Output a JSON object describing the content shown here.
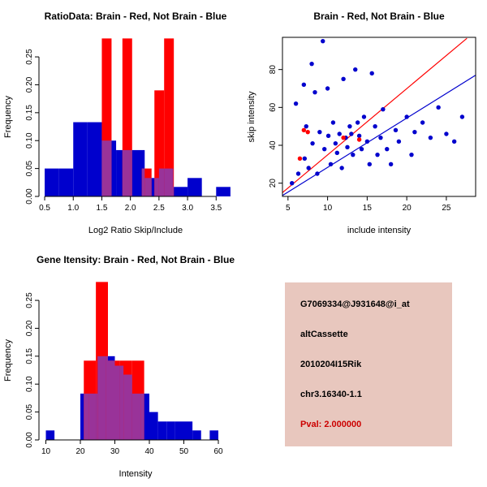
{
  "panels": {
    "info": {
      "bg": "#e8c7be",
      "lines": [
        {
          "text": "G7069334@J931648@i_at",
          "color": "#000000"
        },
        {
          "text": "altCassette",
          "color": "#000000"
        },
        {
          "text": "2010204I15Rik",
          "color": "#000000"
        },
        {
          "text": "chr3.16340-1.1",
          "color": "#000000"
        },
        {
          "text": "Pval: 2.000000",
          "color": "#cc0000"
        }
      ]
    }
  },
  "chart_data": [
    {
      "type": "bar",
      "title": "RatioData: Brain - Red, Not Brain - Blue",
      "xlabel": "Log2 Ratio Skip/Include",
      "ylabel": "Frequency",
      "xlim": [
        0.4,
        3.78
      ],
      "ylim": [
        0,
        0.285
      ],
      "xticks": [
        0.5,
        1.0,
        1.5,
        2.0,
        2.5,
        3.0,
        3.5
      ],
      "xtick_labels": [
        "0.5",
        "1.0",
        "1.5",
        "2.0",
        "2.5",
        "3.0",
        "3.5"
      ],
      "yticks": [
        0,
        0.05,
        0.1,
        0.15,
        0.2,
        0.25
      ],
      "ytick_labels": [
        "0.00",
        "0.05",
        "0.10",
        "0.15",
        "0.20",
        "0.25"
      ],
      "overlap_color": "#993399",
      "series": [
        {
          "name": "Not Brain",
          "color": "#0000cd",
          "bin_width": 0.25,
          "bins": [
            [
              0.5,
              0.05
            ],
            [
              0.75,
              0.05
            ],
            [
              1.0,
              0.133
            ],
            [
              1.25,
              0.133
            ],
            [
              1.5,
              0.1
            ],
            [
              1.75,
              0.083
            ],
            [
              2.0,
              0.083
            ],
            [
              2.25,
              0.033
            ],
            [
              2.5,
              0.05
            ],
            [
              2.75,
              0.017
            ],
            [
              3.0,
              0.033
            ],
            [
              3.5,
              0.017
            ]
          ]
        },
        {
          "name": "Brain",
          "color": "#ff0000",
          "bin_width": 0.17,
          "bins": [
            [
              1.5,
              0.283
            ],
            [
              1.86,
              0.283
            ],
            [
              2.2,
              0.05
            ],
            [
              2.42,
              0.19
            ],
            [
              2.59,
              0.283
            ]
          ]
        }
      ]
    },
    {
      "type": "scatter",
      "title": "Brain - Red, Not Brain - Blue",
      "xlabel": "include intensity",
      "ylabel": "skip intensity",
      "xlim": [
        4.3,
        28.7
      ],
      "ylim": [
        13,
        97
      ],
      "xticks": [
        5,
        10,
        15,
        20,
        25
      ],
      "xtick_labels": [
        "5",
        "10",
        "15",
        "20",
        "25"
      ],
      "yticks": [
        20,
        40,
        60,
        80
      ],
      "ytick_labels": [
        "20",
        "40",
        "60",
        "80"
      ],
      "lines": [
        {
          "color": "#ff0000",
          "x1": 4.3,
          "y1": 15,
          "x2": 27.6,
          "y2": 96.5
        },
        {
          "color": "#0000cd",
          "x1": 4.3,
          "y1": 13.5,
          "x2": 28.7,
          "y2": 77
        }
      ],
      "series": [
        {
          "name": "Not Brain",
          "color": "#0000cd",
          "points": [
            [
              5.5,
              20
            ],
            [
              6,
              62
            ],
            [
              6.3,
              25
            ],
            [
              7,
              72
            ],
            [
              7.1,
              33
            ],
            [
              7.3,
              50
            ],
            [
              7.6,
              28
            ],
            [
              8,
              83
            ],
            [
              8.1,
              41
            ],
            [
              8.4,
              68
            ],
            [
              8.7,
              25
            ],
            [
              9,
              47
            ],
            [
              9.4,
              95
            ],
            [
              9.6,
              38
            ],
            [
              10,
              70
            ],
            [
              10.1,
              45
            ],
            [
              10.4,
              30
            ],
            [
              10.7,
              52
            ],
            [
              11,
              41
            ],
            [
              11.2,
              36
            ],
            [
              11.5,
              46
            ],
            [
              11.8,
              28
            ],
            [
              12,
              75
            ],
            [
              12.3,
              44
            ],
            [
              12.5,
              39
            ],
            [
              12.8,
              50
            ],
            [
              13,
              46
            ],
            [
              13.2,
              35
            ],
            [
              13.5,
              80
            ],
            [
              13.8,
              52
            ],
            [
              14,
              45
            ],
            [
              14.3,
              38
            ],
            [
              14.6,
              55
            ],
            [
              15,
              42
            ],
            [
              15.3,
              30
            ],
            [
              15.6,
              78
            ],
            [
              16,
              50
            ],
            [
              16.3,
              35
            ],
            [
              16.7,
              44
            ],
            [
              17,
              59
            ],
            [
              17.5,
              38
            ],
            [
              18,
              30
            ],
            [
              18.6,
              48
            ],
            [
              19,
              42
            ],
            [
              20,
              55
            ],
            [
              20.6,
              35
            ],
            [
              21,
              47
            ],
            [
              22,
              52
            ],
            [
              23,
              44
            ],
            [
              24,
              60
            ],
            [
              25,
              46
            ],
            [
              26,
              42
            ],
            [
              27,
              55
            ]
          ]
        },
        {
          "name": "Brain",
          "color": "#ff0000",
          "points": [
            [
              6.5,
              33
            ],
            [
              7,
              48
            ],
            [
              7.5,
              47
            ],
            [
              12,
              44
            ],
            [
              14,
              43
            ]
          ]
        }
      ]
    },
    {
      "type": "bar",
      "title": "Gene Itensity: Brain - Red, Not Brain - Blue",
      "xlabel": "Intensity",
      "ylabel": "Frequency",
      "xlim": [
        8,
        64
      ],
      "ylim": [
        0,
        0.285
      ],
      "xticks": [
        10,
        20,
        30,
        40,
        50,
        60
      ],
      "xtick_labels": [
        "10",
        "20",
        "30",
        "40",
        "50",
        "60"
      ],
      "yticks": [
        0,
        0.05,
        0.1,
        0.15,
        0.2,
        0.25
      ],
      "ytick_labels": [
        "0.00",
        "0.05",
        "0.10",
        "0.15",
        "0.20",
        "0.25"
      ],
      "overlap_color": "#993399",
      "series": [
        {
          "name": "Not Brain",
          "color": "#0000cd",
          "bin_width": 2.5,
          "bins": [
            [
              10,
              0.017
            ],
            [
              20,
              0.083
            ],
            [
              22.5,
              0.083
            ],
            [
              25,
              0.15
            ],
            [
              27.5,
              0.15
            ],
            [
              30,
              0.133
            ],
            [
              32.5,
              0.117
            ],
            [
              35,
              0.083
            ],
            [
              37.5,
              0.083
            ],
            [
              40,
              0.05
            ],
            [
              42.5,
              0.033
            ],
            [
              45,
              0.033
            ],
            [
              47.5,
              0.033
            ],
            [
              50,
              0.033
            ],
            [
              52.5,
              0.017
            ],
            [
              57.5,
              0.017
            ]
          ]
        },
        {
          "name": "Brain",
          "color": "#ff0000",
          "bin_width": 3.5,
          "bins": [
            [
              21,
              0.142
            ],
            [
              24.5,
              0.283
            ],
            [
              28,
              0.142
            ],
            [
              31.5,
              0.142
            ],
            [
              35,
              0.142
            ]
          ]
        }
      ]
    }
  ]
}
